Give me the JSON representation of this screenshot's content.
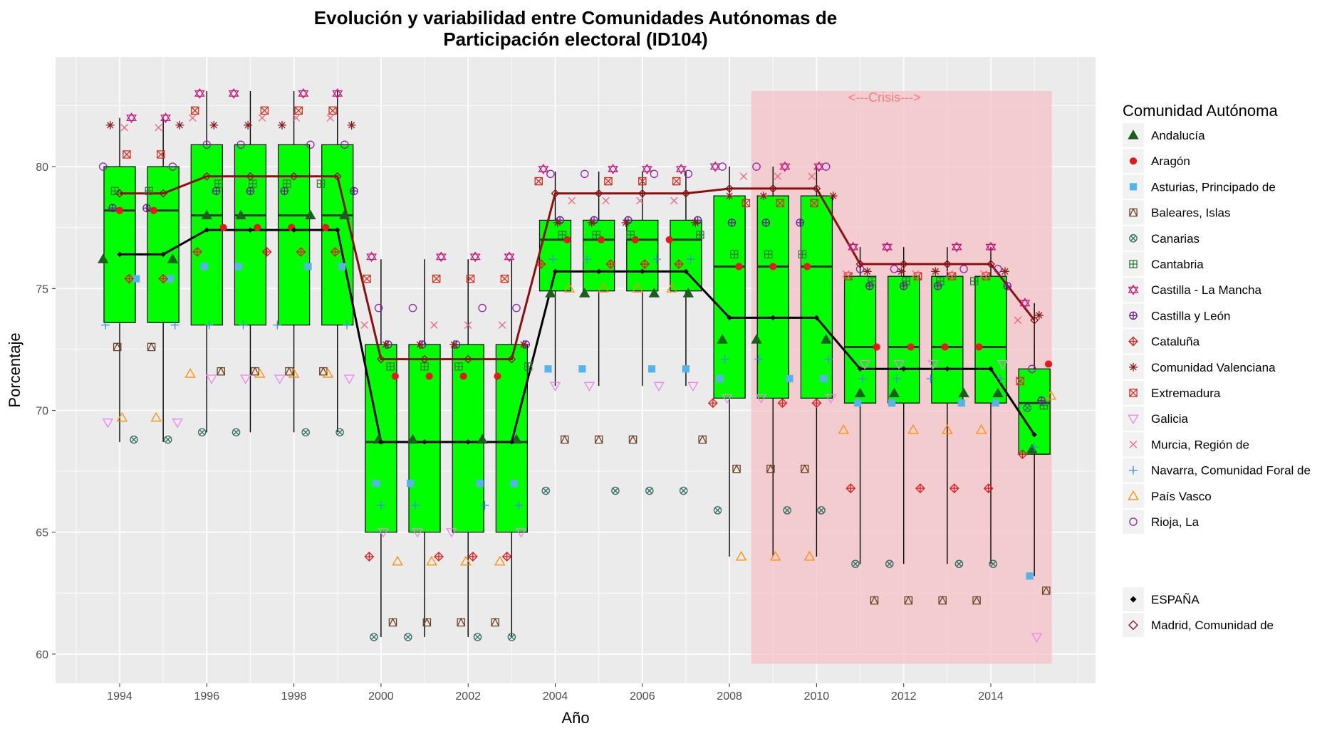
{
  "chart_data": {
    "type": "box",
    "title_line1": "Evolución y variabilidad entre Comunidades Autónomas de",
    "title_line2": "Participación electoral (ID104)",
    "xlabel": "Año",
    "ylabel": "Porcentaje",
    "xlim": [
      1993.0,
      1996.5
    ],
    "ylim": [
      58.8,
      84.5
    ],
    "x_ticks": [
      1994,
      1996,
      1998,
      2000,
      2002,
      2004,
      2006,
      2008,
      2010,
      2012,
      2014
    ],
    "y_ticks": [
      60,
      65,
      70,
      75,
      80
    ],
    "grid": true,
    "crisis": {
      "label": "<---Crisis--->",
      "x_start": 2008.5,
      "x_end": 2015.4,
      "y_min": 59.6,
      "y_max": 83.1,
      "color": "#f4c2c6"
    },
    "boxes": [
      {
        "year": 1994,
        "wmin": 68.7,
        "q1": 73.6,
        "median": 78.2,
        "q3": 80.0,
        "wmax": 82.0
      },
      {
        "year": 1995,
        "wmin": 68.7,
        "q1": 73.6,
        "median": 78.2,
        "q3": 80.0,
        "wmax": 82.0
      },
      {
        "year": 1996,
        "wmin": 69.1,
        "q1": 73.5,
        "median": 78.0,
        "q3": 80.9,
        "wmax": 83.1
      },
      {
        "year": 1997,
        "wmin": 69.1,
        "q1": 73.5,
        "median": 78.0,
        "q3": 80.9,
        "wmax": 83.1
      },
      {
        "year": 1998,
        "wmin": 69.1,
        "q1": 73.5,
        "median": 78.0,
        "q3": 80.9,
        "wmax": 83.1
      },
      {
        "year": 1999,
        "wmin": 69.1,
        "q1": 73.5,
        "median": 78.0,
        "q3": 80.9,
        "wmax": 83.1
      },
      {
        "year": 2000,
        "wmin": 60.7,
        "q1": 65.0,
        "median": 68.7,
        "q3": 72.7,
        "wmax": 76.2
      },
      {
        "year": 2001,
        "wmin": 60.7,
        "q1": 65.0,
        "median": 68.7,
        "q3": 72.7,
        "wmax": 76.2
      },
      {
        "year": 2002,
        "wmin": 60.7,
        "q1": 65.0,
        "median": 68.7,
        "q3": 72.7,
        "wmax": 76.2
      },
      {
        "year": 2003,
        "wmin": 60.7,
        "q1": 65.0,
        "median": 68.7,
        "q3": 72.7,
        "wmax": 76.2
      },
      {
        "year": 2004,
        "wmin": 71.0,
        "q1": 74.9,
        "median": 77.0,
        "q3": 77.8,
        "wmax": 79.8
      },
      {
        "year": 2005,
        "wmin": 71.0,
        "q1": 74.9,
        "median": 77.0,
        "q3": 77.8,
        "wmax": 79.8
      },
      {
        "year": 2006,
        "wmin": 71.0,
        "q1": 74.9,
        "median": 77.0,
        "q3": 77.8,
        "wmax": 79.8
      },
      {
        "year": 2007,
        "wmin": 71.0,
        "q1": 74.9,
        "median": 77.0,
        "q3": 77.8,
        "wmax": 79.8
      },
      {
        "year": 2008,
        "wmin": 64.0,
        "q1": 70.5,
        "median": 75.9,
        "q3": 78.8,
        "wmax": 80.0
      },
      {
        "year": 2009,
        "wmin": 64.0,
        "q1": 70.5,
        "median": 75.9,
        "q3": 78.8,
        "wmax": 80.0
      },
      {
        "year": 2010,
        "wmin": 64.0,
        "q1": 70.5,
        "median": 75.9,
        "q3": 78.8,
        "wmax": 80.0
      },
      {
        "year": 2011,
        "wmin": 63.7,
        "q1": 70.3,
        "median": 72.6,
        "q3": 75.5,
        "wmax": 76.7
      },
      {
        "year": 2012,
        "wmin": 63.7,
        "q1": 70.3,
        "median": 72.6,
        "q3": 75.5,
        "wmax": 76.7
      },
      {
        "year": 2013,
        "wmin": 63.7,
        "q1": 70.3,
        "median": 72.6,
        "q3": 75.5,
        "wmax": 76.7
      },
      {
        "year": 2014,
        "wmin": 63.7,
        "q1": 70.3,
        "median": 72.6,
        "q3": 75.5,
        "wmax": 76.7
      },
      {
        "year": 2015,
        "wmin": 63.2,
        "q1": 68.2,
        "median": 70.3,
        "q3": 71.7,
        "wmax": 74.4
      }
    ],
    "series": [
      {
        "name": "Andalucía",
        "marker": "triangle-filled",
        "color": "#1b5e20",
        "values": [
          76.2,
          76.2,
          78.0,
          78.0,
          78.0,
          78.0,
          68.8,
          68.8,
          68.8,
          68.8,
          74.8,
          74.8,
          74.8,
          74.8,
          72.9,
          72.9,
          72.9,
          70.7,
          70.7,
          70.7,
          70.7,
          68.4
        ]
      },
      {
        "name": "Aragón",
        "marker": "circle-filled",
        "color": "#e31a1c",
        "values": [
          78.2,
          78.2,
          77.5,
          77.5,
          77.5,
          77.5,
          71.4,
          71.4,
          71.4,
          71.4,
          77.0,
          77.0,
          77.0,
          77.0,
          75.9,
          75.9,
          75.9,
          72.6,
          72.6,
          72.6,
          72.6,
          71.9
        ]
      },
      {
        "name": "Asturias, Principado de",
        "marker": "square-filled",
        "color": "#56b4e9",
        "values": [
          75.4,
          75.4,
          75.9,
          75.9,
          75.9,
          75.9,
          67.0,
          67.0,
          67.0,
          67.0,
          71.7,
          71.7,
          71.7,
          71.7,
          71.3,
          71.3,
          71.3,
          70.3,
          70.3,
          70.3,
          70.3,
          63.2
        ]
      },
      {
        "name": "Baleares, Islas",
        "marker": "square-triangle",
        "color": "#6b4226",
        "values": [
          72.6,
          72.6,
          71.6,
          71.6,
          71.6,
          71.6,
          61.3,
          61.3,
          61.3,
          61.3,
          68.8,
          68.8,
          68.8,
          68.8,
          67.6,
          67.6,
          67.6,
          62.2,
          62.2,
          62.2,
          62.2,
          62.6
        ]
      },
      {
        "name": "Canarias",
        "marker": "circle-x",
        "color": "#2e6b5e",
        "values": [
          68.8,
          68.8,
          69.1,
          69.1,
          69.1,
          69.1,
          60.7,
          60.7,
          60.7,
          60.7,
          66.7,
          66.7,
          66.7,
          66.7,
          65.9,
          65.9,
          65.9,
          63.7,
          63.7,
          63.7,
          63.7,
          70.1
        ]
      },
      {
        "name": "Cantabria",
        "marker": "square-plus",
        "color": "#2e7d32",
        "values": [
          79.0,
          79.0,
          79.3,
          79.3,
          79.3,
          79.3,
          71.8,
          71.8,
          71.8,
          71.8,
          77.2,
          77.2,
          77.2,
          77.2,
          76.4,
          76.4,
          76.4,
          75.3,
          75.3,
          75.3,
          75.3,
          70.2
        ]
      },
      {
        "name": "Castilla - La Mancha",
        "marker": "star-david",
        "color": "#c51b7d",
        "values": [
          82.0,
          82.0,
          83.0,
          83.0,
          83.0,
          83.0,
          76.3,
          76.3,
          76.3,
          76.3,
          79.9,
          79.9,
          79.9,
          79.9,
          80.0,
          80.0,
          80.0,
          76.7,
          76.7,
          76.7,
          76.7,
          74.4
        ]
      },
      {
        "name": "Castilla y León",
        "marker": "circle-plus",
        "color": "#6a1b9a",
        "values": [
          78.3,
          78.3,
          79.0,
          79.0,
          79.0,
          79.0,
          72.7,
          72.7,
          72.7,
          72.7,
          77.8,
          77.8,
          77.8,
          77.8,
          77.7,
          77.7,
          77.7,
          75.1,
          75.1,
          75.1,
          75.1,
          70.4
        ]
      },
      {
        "name": "Cataluña",
        "marker": "diamond-plus",
        "color": "#e31a1c",
        "values": [
          75.4,
          75.4,
          76.5,
          76.5,
          76.5,
          76.5,
          64.0,
          64.0,
          64.0,
          64.0,
          76.0,
          76.0,
          76.0,
          76.0,
          70.3,
          70.3,
          70.3,
          66.8,
          66.8,
          66.8,
          66.8,
          68.2
        ]
      },
      {
        "name": "Comunidad Valenciana",
        "marker": "asterisk",
        "color": "#8b1a1a",
        "values": [
          81.7,
          81.7,
          81.7,
          81.7,
          81.7,
          81.7,
          72.7,
          72.7,
          72.7,
          72.7,
          77.7,
          77.7,
          77.7,
          77.7,
          78.8,
          78.8,
          78.8,
          75.7,
          75.7,
          75.7,
          75.7,
          73.9
        ]
      },
      {
        "name": "Extremadura",
        "marker": "square-x",
        "color": "#d7301f",
        "values": [
          80.5,
          80.5,
          82.3,
          82.3,
          82.3,
          82.3,
          75.4,
          75.4,
          75.4,
          75.4,
          79.4,
          79.4,
          79.4,
          79.4,
          78.5,
          78.5,
          78.5,
          75.5,
          75.5,
          75.5,
          75.5,
          71.2
        ]
      },
      {
        "name": "Galicia",
        "marker": "triangle-down",
        "color": "#ee82ee",
        "values": [
          69.5,
          69.5,
          71.3,
          71.3,
          71.3,
          71.3,
          65.0,
          65.0,
          65.0,
          65.0,
          71.0,
          71.0,
          71.0,
          71.0,
          70.5,
          70.5,
          70.5,
          71.9,
          71.9,
          71.9,
          71.9,
          60.7
        ]
      },
      {
        "name": "Murcia, Región de",
        "marker": "x",
        "color": "#f06277",
        "values": [
          81.6,
          81.6,
          82.0,
          82.0,
          82.0,
          82.0,
          73.5,
          73.5,
          73.5,
          73.5,
          78.6,
          78.6,
          78.6,
          78.6,
          79.6,
          79.6,
          79.6,
          75.6,
          75.6,
          75.6,
          75.6,
          73.7
        ]
      },
      {
        "name": "Navarra, Comunidad Foral de",
        "marker": "plus",
        "color": "#3a8fd9",
        "values": [
          73.5,
          73.5,
          73.5,
          73.5,
          73.5,
          73.5,
          66.1,
          66.1,
          66.1,
          66.1,
          76.2,
          76.2,
          76.2,
          76.2,
          72.1,
          72.1,
          72.1,
          71.3,
          71.3,
          71.3,
          71.3,
          68.5
        ]
      },
      {
        "name": "País Vasco",
        "marker": "triangle-open",
        "color": "#ff8c00",
        "values": [
          69.7,
          69.7,
          71.5,
          71.5,
          71.5,
          71.5,
          63.8,
          63.8,
          63.8,
          63.8,
          75.0,
          75.0,
          75.0,
          75.0,
          64.0,
          64.0,
          64.0,
          69.2,
          69.2,
          69.2,
          69.2,
          70.6
        ]
      },
      {
        "name": "Rioja, La",
        "marker": "circle-open",
        "color": "#8e24aa",
        "values": [
          80.0,
          80.0,
          80.9,
          80.9,
          80.9,
          80.9,
          74.2,
          74.2,
          74.2,
          74.2,
          79.7,
          79.7,
          79.7,
          79.7,
          80.0,
          80.0,
          80.0,
          75.8,
          75.8,
          75.8,
          75.8,
          71.7
        ]
      },
      {
        "name": "ESPAÑA",
        "marker": "diamond-filled",
        "color": "#000000",
        "line": true,
        "values": [
          76.4,
          76.4,
          77.4,
          77.4,
          77.4,
          77.4,
          68.7,
          68.7,
          68.7,
          68.7,
          75.7,
          75.7,
          75.7,
          75.7,
          73.8,
          73.8,
          73.8,
          71.7,
          71.7,
          71.7,
          71.7,
          69.0
        ]
      },
      {
        "name": "Madrid, Comunidad de",
        "marker": "diamond-open",
        "color": "#8b1010",
        "line": true,
        "values": [
          78.9,
          78.9,
          79.6,
          79.6,
          79.6,
          79.6,
          72.1,
          72.1,
          72.1,
          72.1,
          78.9,
          78.9,
          78.9,
          78.9,
          79.1,
          79.1,
          79.1,
          76.0,
          76.0,
          76.0,
          76.0,
          73.7
        ]
      }
    ]
  },
  "legend": {
    "title": "Comunidad Autónoma",
    "items": [
      "Andalucía",
      "Aragón",
      "Asturias, Principado de",
      "Baleares, Islas",
      "Canarias",
      "Cantabria",
      "Castilla - La Mancha",
      "Castilla y León",
      "Cataluña",
      "Comunidad Valenciana",
      "Extremadura",
      "Galicia",
      "Murcia, Región de",
      "Navarra, Comunidad Foral de",
      "País Vasco",
      "Rioja, La"
    ],
    "items2": [
      "ESPAÑA",
      "Madrid, Comunidad de"
    ]
  }
}
